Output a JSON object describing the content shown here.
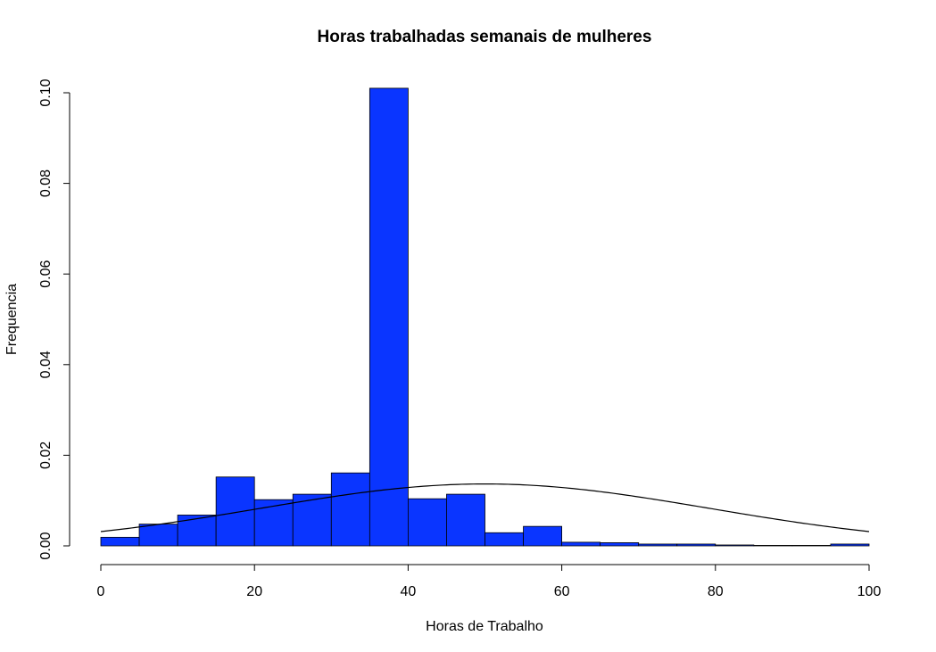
{
  "chart_data": {
    "type": "bar",
    "title": "Horas trabalhadas semanais de mulheres",
    "xlabel": "Horas de Trabalho",
    "ylabel": "Frequencia",
    "xlim": [
      0,
      100
    ],
    "ylim": [
      0,
      0.1
    ],
    "x_ticks": [
      "0",
      "20",
      "40",
      "60",
      "80",
      "100"
    ],
    "y_ticks": [
      "0.00",
      "0.02",
      "0.04",
      "0.06",
      "0.08",
      "0.10"
    ],
    "bin_width": 5,
    "bins": [
      {
        "start": 0,
        "end": 5,
        "density": 0.0019
      },
      {
        "start": 5,
        "end": 10,
        "density": 0.0048
      },
      {
        "start": 10,
        "end": 15,
        "density": 0.0068
      },
      {
        "start": 15,
        "end": 20,
        "density": 0.0152
      },
      {
        "start": 20,
        "end": 25,
        "density": 0.0102
      },
      {
        "start": 25,
        "end": 30,
        "density": 0.0114
      },
      {
        "start": 30,
        "end": 35,
        "density": 0.0161
      },
      {
        "start": 35,
        "end": 40,
        "density": 0.101
      },
      {
        "start": 40,
        "end": 45,
        "density": 0.0104
      },
      {
        "start": 45,
        "end": 50,
        "density": 0.0114
      },
      {
        "start": 50,
        "end": 55,
        "density": 0.0029
      },
      {
        "start": 55,
        "end": 60,
        "density": 0.0043
      },
      {
        "start": 60,
        "end": 65,
        "density": 0.0008
      },
      {
        "start": 65,
        "end": 70,
        "density": 0.0007
      },
      {
        "start": 70,
        "end": 75,
        "density": 0.0004
      },
      {
        "start": 75,
        "end": 80,
        "density": 0.0004
      },
      {
        "start": 80,
        "end": 85,
        "density": 0.0002
      },
      {
        "start": 85,
        "end": 90,
        "density": 0.0001
      },
      {
        "start": 90,
        "end": 95,
        "density": 0.0
      },
      {
        "start": 95,
        "end": 100,
        "density": 0.0004
      }
    ],
    "normal_curve": {
      "mean": 50,
      "sd": 29.2
    },
    "bar_color": "#0a35ff",
    "bar_border_color": "#000000",
    "curve_color": "#000000",
    "grid": false,
    "legend": "none"
  }
}
